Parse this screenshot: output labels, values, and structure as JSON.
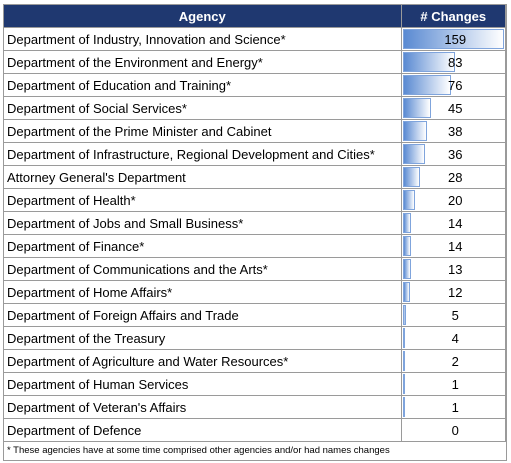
{
  "table": {
    "header": [
      "Agency",
      "# Changes"
    ],
    "rows": [
      {
        "agency": "Department of Industry, Innovation and Science*",
        "changes": 159
      },
      {
        "agency": "Department of the Environment and Energy*",
        "changes": 83
      },
      {
        "agency": "Department of Education and Training*",
        "changes": 76
      },
      {
        "agency": "Department of Social Services*",
        "changes": 45
      },
      {
        "agency": "Department of the Prime Minister and Cabinet",
        "changes": 38
      },
      {
        "agency": "Department of Infrastructure, Regional Development and Cities*",
        "changes": 36
      },
      {
        "agency": "Attorney General's Department",
        "changes": 28
      },
      {
        "agency": "Department of Health*",
        "changes": 20
      },
      {
        "agency": "Department of Jobs and Small Business*",
        "changes": 14
      },
      {
        "agency": "Department of Finance*",
        "changes": 14
      },
      {
        "agency": "Department of Communications and the Arts*",
        "changes": 13
      },
      {
        "agency": "Department of Home Affairs*",
        "changes": 12
      },
      {
        "agency": "Department of Foreign Affairs and Trade",
        "changes": 5
      },
      {
        "agency": "Department of the Treasury",
        "changes": 4
      },
      {
        "agency": "Department of Agriculture and Water Resources*",
        "changes": 2
      },
      {
        "agency": "Department of Human Services",
        "changes": 1
      },
      {
        "agency": "Department of Veteran's Affairs",
        "changes": 1
      },
      {
        "agency": "Department of Defence",
        "changes": 0
      }
    ],
    "footnote": "* These agencies have at some time comprised other agencies and/or had names changes"
  }
}
